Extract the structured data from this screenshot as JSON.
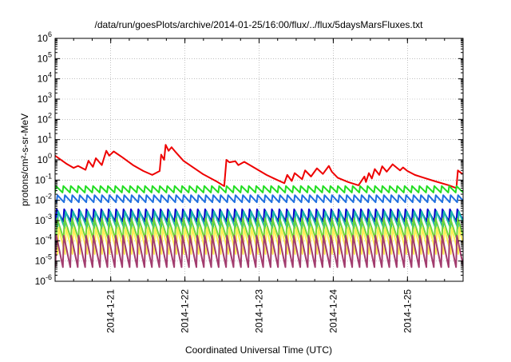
{
  "chart_data": {
    "type": "line",
    "title": "/data/run/goesPlots/archive/2014-01-25/16:00/flux/../flux/5daysMarsFluxes.txt",
    "xlabel": "Coordinated Universal Time (UTC)",
    "ylabel": "protons/cm²-s-sr-MeV",
    "yscale": "log",
    "ylim": [
      1e-06,
      1000000.0
    ],
    "xlim": [
      "2014-01-20 06:00",
      "2014-01-25 18:00"
    ],
    "grid": true,
    "y_tick_labels": [
      {
        "base": "10",
        "exp": "-6"
      },
      {
        "base": "10",
        "exp": "-5"
      },
      {
        "base": "10",
        "exp": "-4"
      },
      {
        "base": "10",
        "exp": "-3"
      },
      {
        "base": "10",
        "exp": "-2"
      },
      {
        "base": "10",
        "exp": "-1"
      },
      {
        "base": "10",
        "exp": "0"
      },
      {
        "base": "10",
        "exp": "1"
      },
      {
        "base": "10",
        "exp": "2"
      },
      {
        "base": "10",
        "exp": "3"
      },
      {
        "base": "10",
        "exp": "4"
      },
      {
        "base": "10",
        "exp": "5"
      },
      {
        "base": "10",
        "exp": "6"
      }
    ],
    "x_tick_labels": [
      "2014-1-21",
      "2014-1-22",
      "2014-1-23",
      "2014-1-24",
      "2014-1-25"
    ],
    "series": [
      {
        "color": "#ee0000",
        "x": [
          "2014-01-20 06:00",
          "2014-01-20 09:36",
          "2014-01-20 12:00",
          "2014-01-20 13:26",
          "2014-01-20 15:50",
          "2014-01-20 16:48",
          "2014-01-20 18:14",
          "2014-01-20 19:12",
          "2014-01-20 21:07",
          "2014-01-20 22:34",
          "2014-01-20 23:31",
          "2014-01-21 00:58",
          "2014-01-21 03:50",
          "2014-01-21 07:12",
          "2014-01-21 10:34",
          "2014-01-21 13:26",
          "2014-01-21 15:50",
          "2014-01-21 16:19",
          "2014-01-21 17:17",
          "2014-01-21 17:46",
          "2014-01-21 18:43",
          "2014-01-21 19:41",
          "2014-01-21 21:07",
          "2014-01-21 23:31",
          "2014-01-22 05:46",
          "2014-01-22 10:34",
          "2014-01-22 12:43",
          "2014-01-22 13:26",
          "2014-01-22 14:24",
          "2014-01-22 16:19",
          "2014-01-22 17:17",
          "2014-01-22 19:12",
          "2014-01-22 22:34",
          "2014-01-23 02:24",
          "2014-01-23 04:48",
          "2014-01-23 08:10",
          "2014-01-23 09:07",
          "2014-01-23 10:34",
          "2014-01-23 11:31",
          "2014-01-23 13:55",
          "2014-01-23 14:53",
          "2014-01-23 16:48",
          "2014-01-23 18:43",
          "2014-01-23 20:38",
          "2014-01-23 22:34",
          "2014-01-23 23:31",
          "2014-01-24 01:26",
          "2014-01-24 04:48",
          "2014-01-24 08:10",
          "2014-01-24 10:05",
          "2014-01-24 10:34",
          "2014-01-24 11:31",
          "2014-01-24 12:29",
          "2014-01-24 13:26",
          "2014-01-24 14:53",
          "2014-01-24 15:50",
          "2014-01-24 17:17",
          "2014-01-24 19:12",
          "2014-01-24 21:36",
          "2014-01-24 22:34",
          "2014-01-25 00:00",
          "2014-01-25 02:24",
          "2014-01-25 05:17",
          "2014-01-25 08:38",
          "2014-01-25 13:26",
          "2014-01-25 15:50",
          "2014-01-25 16:19",
          "2014-01-25 17:46"
        ],
        "y": [
          1.6,
          0.65,
          0.4,
          0.5,
          0.32,
          0.9,
          0.45,
          1.2,
          0.55,
          2.8,
          1.6,
          2.6,
          1.3,
          0.55,
          0.28,
          0.18,
          0.28,
          1.8,
          1.0,
          5.5,
          2.8,
          4.2,
          2.3,
          0.9,
          0.2,
          0.08,
          0.05,
          1.0,
          0.75,
          0.85,
          0.55,
          0.8,
          0.4,
          0.18,
          0.12,
          0.07,
          0.18,
          0.09,
          0.22,
          0.11,
          0.3,
          0.15,
          0.38,
          0.2,
          0.5,
          0.26,
          0.13,
          0.08,
          0.055,
          0.15,
          0.08,
          0.22,
          0.12,
          0.35,
          0.18,
          0.48,
          0.26,
          0.6,
          0.3,
          0.42,
          0.28,
          0.18,
          0.13,
          0.09,
          0.055,
          0.04,
          0.3,
          0.2
        ]
      },
      {
        "color": "#22dd22",
        "level": 0.035,
        "amp": 1.45,
        "shift": 0.0
      },
      {
        "color": "#1f6fe0",
        "level": 0.012,
        "amp": 1.5,
        "shift": 0.2
      },
      {
        "color": "#0000cc",
        "level": 0.0018,
        "amp": 2.0,
        "shift": 0.1
      },
      {
        "color": "#1ab8a8",
        "level": 0.0011,
        "amp": 2.6,
        "shift": 0.3
      },
      {
        "color": "#6ed43c",
        "level": 0.0004,
        "amp": 3.2,
        "shift": 0.15
      },
      {
        "color": "#ffee55",
        "level": 0.0001,
        "amp": 4.5,
        "shift": 0.35
      },
      {
        "color": "#a23c6e",
        "level": 3e-05,
        "amp": 6.0,
        "shift": 0.05
      }
    ]
  }
}
